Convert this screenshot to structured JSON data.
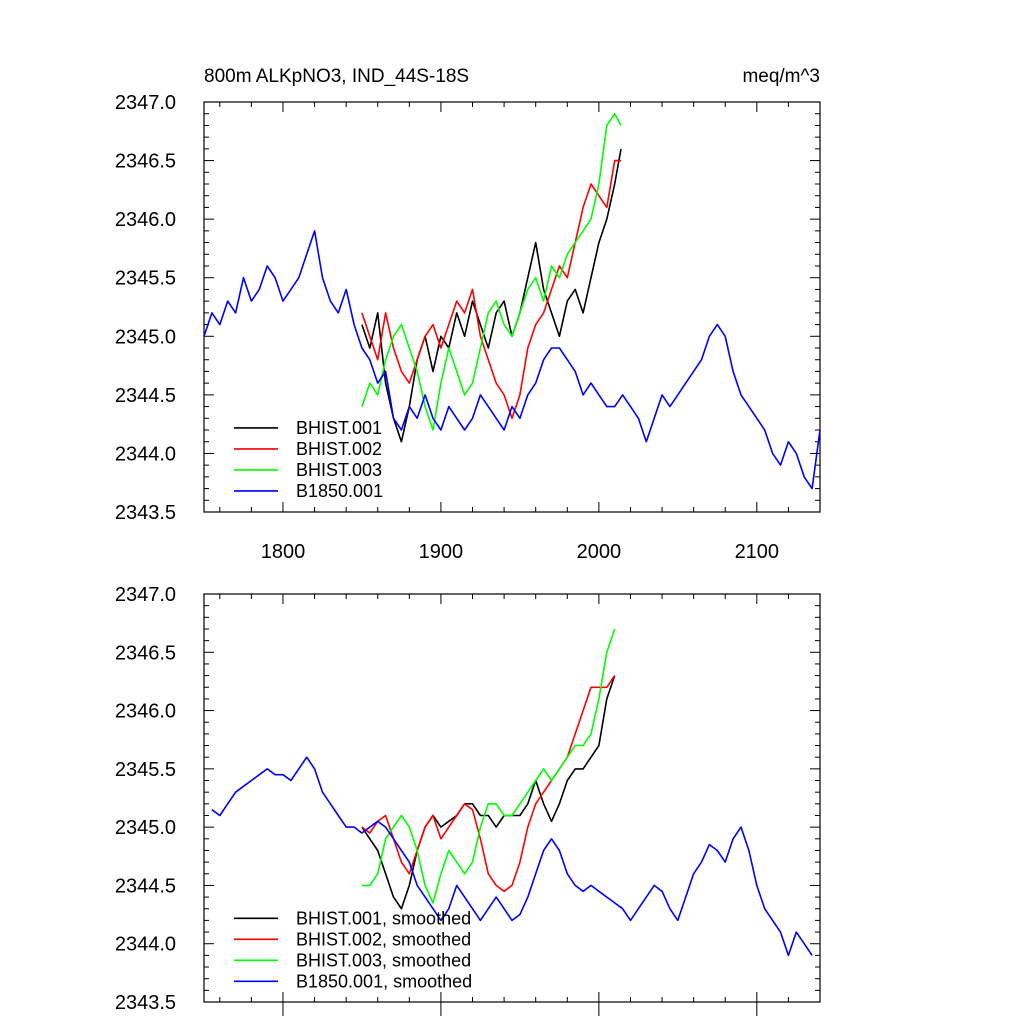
{
  "chart_data": [
    {
      "type": "line",
      "title": "800m ALKpNO3, IND_44S-18S",
      "units": "meq/m^3",
      "xlabel": "",
      "ylabel": "",
      "xlim": [
        1750,
        2140
      ],
      "ylim": [
        2343.5,
        2347.0
      ],
      "x_ticks": [
        1800,
        1900,
        2000,
        2100
      ],
      "x_tick_labels": [
        "1800",
        "1900",
        "2000",
        "2100"
      ],
      "y_ticks": [
        2343.5,
        2344.0,
        2344.5,
        2345.0,
        2345.5,
        2346.0,
        2346.5,
        2347.0
      ],
      "y_tick_labels": [
        "2343.5",
        "2344.0",
        "2344.5",
        "2345.0",
        "2345.5",
        "2346.0",
        "2346.5",
        "2347.0"
      ],
      "grid": false,
      "legend": "bottom-left",
      "series": [
        {
          "name": "BHIST.001",
          "color": "#000000",
          "x": [
            1850,
            1855,
            1860,
            1865,
            1870,
            1875,
            1880,
            1885,
            1890,
            1895,
            1900,
            1905,
            1910,
            1915,
            1920,
            1925,
            1930,
            1935,
            1940,
            1945,
            1950,
            1955,
            1960,
            1965,
            1970,
            1975,
            1980,
            1985,
            1990,
            1995,
            2000,
            2005,
            2010,
            2014
          ],
          "y": [
            2345.1,
            2344.9,
            2345.2,
            2344.6,
            2344.3,
            2344.1,
            2344.4,
            2344.8,
            2345.0,
            2344.7,
            2345.0,
            2344.9,
            2345.2,
            2345.0,
            2345.3,
            2345.1,
            2344.9,
            2345.2,
            2345.3,
            2345.0,
            2345.2,
            2345.5,
            2345.8,
            2345.4,
            2345.2,
            2345.0,
            2345.3,
            2345.4,
            2345.2,
            2345.5,
            2345.8,
            2346.0,
            2346.3,
            2346.6
          ]
        },
        {
          "name": "BHIST.002",
          "color": "#ff0000",
          "x": [
            1850,
            1855,
            1860,
            1865,
            1870,
            1875,
            1880,
            1885,
            1890,
            1895,
            1900,
            1905,
            1910,
            1915,
            1920,
            1925,
            1930,
            1935,
            1940,
            1945,
            1950,
            1955,
            1960,
            1965,
            1970,
            1975,
            1980,
            1985,
            1990,
            1995,
            2000,
            2005,
            2010,
            2014
          ],
          "y": [
            2345.2,
            2345.0,
            2344.8,
            2345.2,
            2344.9,
            2344.7,
            2344.6,
            2344.8,
            2345.0,
            2345.1,
            2344.9,
            2345.1,
            2345.3,
            2345.2,
            2345.4,
            2345.0,
            2344.8,
            2344.6,
            2344.5,
            2344.3,
            2344.5,
            2344.9,
            2345.1,
            2345.2,
            2345.4,
            2345.6,
            2345.5,
            2345.8,
            2346.1,
            2346.3,
            2346.2,
            2346.1,
            2346.5,
            2346.5
          ]
        },
        {
          "name": "BHIST.003",
          "color": "#00ff00",
          "x": [
            1850,
            1855,
            1860,
            1865,
            1870,
            1875,
            1880,
            1885,
            1890,
            1895,
            1900,
            1905,
            1910,
            1915,
            1920,
            1925,
            1930,
            1935,
            1940,
            1945,
            1950,
            1955,
            1960,
            1965,
            1970,
            1975,
            1980,
            1985,
            1990,
            1995,
            2000,
            2005,
            2010,
            2014
          ],
          "y": [
            2344.4,
            2344.6,
            2344.5,
            2344.8,
            2345.0,
            2345.1,
            2344.9,
            2344.7,
            2344.4,
            2344.2,
            2344.6,
            2344.9,
            2344.7,
            2344.5,
            2344.6,
            2344.9,
            2345.2,
            2345.3,
            2345.1,
            2345.0,
            2345.2,
            2345.4,
            2345.5,
            2345.3,
            2345.6,
            2345.5,
            2345.7,
            2345.8,
            2345.9,
            2346.0,
            2346.3,
            2346.8,
            2346.9,
            2346.8
          ]
        },
        {
          "name": "B1850.001",
          "color": "#0000ff",
          "x": [
            1750,
            1755,
            1760,
            1765,
            1770,
            1775,
            1780,
            1785,
            1790,
            1795,
            1800,
            1805,
            1810,
            1815,
            1820,
            1825,
            1830,
            1835,
            1840,
            1845,
            1850,
            1855,
            1860,
            1865,
            1870,
            1875,
            1880,
            1885,
            1890,
            1895,
            1900,
            1905,
            1910,
            1915,
            1920,
            1925,
            1930,
            1935,
            1940,
            1945,
            1950,
            1955,
            1960,
            1965,
            1970,
            1975,
            1980,
            1985,
            1990,
            1995,
            2000,
            2005,
            2010,
            2015,
            2020,
            2025,
            2030,
            2035,
            2040,
            2045,
            2050,
            2055,
            2060,
            2065,
            2070,
            2075,
            2080,
            2085,
            2090,
            2095,
            2100,
            2105,
            2110,
            2115,
            2120,
            2125,
            2130,
            2135,
            2140
          ],
          "y": [
            2345.0,
            2345.2,
            2345.1,
            2345.3,
            2345.2,
            2345.5,
            2345.3,
            2345.4,
            2345.6,
            2345.5,
            2345.3,
            2345.4,
            2345.5,
            2345.7,
            2345.9,
            2345.5,
            2345.3,
            2345.2,
            2345.4,
            2345.1,
            2344.9,
            2344.8,
            2344.6,
            2344.7,
            2344.3,
            2344.2,
            2344.4,
            2344.3,
            2344.5,
            2344.3,
            2344.2,
            2344.4,
            2344.3,
            2344.2,
            2344.3,
            2344.5,
            2344.4,
            2344.3,
            2344.2,
            2344.4,
            2344.3,
            2344.5,
            2344.6,
            2344.8,
            2344.9,
            2344.9,
            2344.8,
            2344.7,
            2344.5,
            2344.6,
            2344.5,
            2344.4,
            2344.4,
            2344.5,
            2344.4,
            2344.3,
            2344.1,
            2344.3,
            2344.5,
            2344.4,
            2344.5,
            2344.6,
            2344.7,
            2344.8,
            2345.0,
            2345.1,
            2345.0,
            2344.7,
            2344.5,
            2344.4,
            2344.3,
            2344.2,
            2344.0,
            2343.9,
            2344.1,
            2344.0,
            2343.8,
            2343.7,
            2344.2
          ]
        }
      ]
    },
    {
      "type": "line",
      "title": "",
      "xlabel": "",
      "ylabel": "",
      "xlim": [
        1750,
        2140
      ],
      "ylim": [
        2343.5,
        2347.0
      ],
      "x_ticks": [
        1800,
        1900,
        2000,
        2100
      ],
      "x_tick_labels": [],
      "y_ticks": [
        2343.5,
        2344.0,
        2344.5,
        2345.0,
        2345.5,
        2346.0,
        2346.5,
        2347.0
      ],
      "y_tick_labels": [
        "2343.5",
        "2344.0",
        "2344.5",
        "2345.0",
        "2345.5",
        "2346.0",
        "2346.5",
        "2347.0"
      ],
      "grid": false,
      "legend": "bottom-left",
      "series": [
        {
          "name": "BHIST.001, smoothed",
          "color": "#000000",
          "x": [
            1850,
            1855,
            1860,
            1865,
            1870,
            1875,
            1880,
            1885,
            1890,
            1895,
            1900,
            1905,
            1910,
            1915,
            1920,
            1925,
            1930,
            1935,
            1940,
            1945,
            1950,
            1955,
            1960,
            1965,
            1970,
            1975,
            1980,
            1985,
            1990,
            1995,
            2000,
            2005,
            2010
          ],
          "y": [
            2345.0,
            2344.9,
            2344.8,
            2344.6,
            2344.4,
            2344.3,
            2344.5,
            2344.8,
            2345.0,
            2345.1,
            2345.0,
            2345.05,
            2345.1,
            2345.2,
            2345.2,
            2345.1,
            2345.1,
            2345.0,
            2345.1,
            2345.1,
            2345.1,
            2345.2,
            2345.4,
            2345.2,
            2345.05,
            2345.2,
            2345.4,
            2345.5,
            2345.5,
            2345.6,
            2345.7,
            2346.1,
            2346.3
          ]
        },
        {
          "name": "BHIST.002, smoothed",
          "color": "#ff0000",
          "x": [
            1850,
            1855,
            1860,
            1865,
            1870,
            1875,
            1880,
            1885,
            1890,
            1895,
            1900,
            1905,
            1910,
            1915,
            1920,
            1925,
            1930,
            1935,
            1940,
            1945,
            1950,
            1955,
            1960,
            1965,
            1970,
            1975,
            1980,
            1985,
            1990,
            1995,
            2000,
            2005,
            2010
          ],
          "y": [
            2345.0,
            2344.95,
            2345.05,
            2345.1,
            2344.9,
            2344.7,
            2344.6,
            2344.8,
            2345.0,
            2345.1,
            2344.9,
            2345.0,
            2345.1,
            2345.2,
            2345.15,
            2344.9,
            2344.6,
            2344.5,
            2344.45,
            2344.5,
            2344.7,
            2345.0,
            2345.2,
            2345.3,
            2345.4,
            2345.5,
            2345.6,
            2345.8,
            2346.0,
            2346.2,
            2346.2,
            2346.2,
            2346.3
          ]
        },
        {
          "name": "BHIST.003, smoothed",
          "color": "#00ff00",
          "x": [
            1850,
            1855,
            1860,
            1865,
            1870,
            1875,
            1880,
            1885,
            1890,
            1895,
            1900,
            1905,
            1910,
            1915,
            1920,
            1925,
            1930,
            1935,
            1940,
            1945,
            1950,
            1955,
            1960,
            1965,
            1970,
            1975,
            1980,
            1985,
            1990,
            1995,
            2000,
            2005,
            2010
          ],
          "y": [
            2344.5,
            2344.5,
            2344.6,
            2344.9,
            2345.0,
            2345.1,
            2345.0,
            2344.8,
            2344.5,
            2344.35,
            2344.6,
            2344.8,
            2344.7,
            2344.6,
            2344.7,
            2345.0,
            2345.2,
            2345.2,
            2345.1,
            2345.1,
            2345.2,
            2345.3,
            2345.4,
            2345.5,
            2345.4,
            2345.5,
            2345.6,
            2345.7,
            2345.7,
            2345.8,
            2346.1,
            2346.5,
            2346.7
          ]
        },
        {
          "name": "B1850.001, smoothed",
          "color": "#0000ff",
          "x": [
            1755,
            1760,
            1765,
            1770,
            1775,
            1780,
            1785,
            1790,
            1795,
            1800,
            1805,
            1810,
            1815,
            1820,
            1825,
            1830,
            1835,
            1840,
            1845,
            1850,
            1855,
            1860,
            1865,
            1870,
            1875,
            1880,
            1885,
            1890,
            1895,
            1900,
            1905,
            1910,
            1915,
            1920,
            1925,
            1930,
            1935,
            1940,
            1945,
            1950,
            1955,
            1960,
            1965,
            1970,
            1975,
            1980,
            1985,
            1990,
            1995,
            2000,
            2005,
            2010,
            2015,
            2020,
            2025,
            2030,
            2035,
            2040,
            2045,
            2050,
            2055,
            2060,
            2065,
            2070,
            2075,
            2080,
            2085,
            2090,
            2095,
            2100,
            2105,
            2110,
            2115,
            2120,
            2125,
            2130,
            2135
          ],
          "y": [
            2345.15,
            2345.1,
            2345.2,
            2345.3,
            2345.35,
            2345.4,
            2345.45,
            2345.5,
            2345.45,
            2345.45,
            2345.4,
            2345.5,
            2345.6,
            2345.5,
            2345.3,
            2345.2,
            2345.1,
            2345.0,
            2345.0,
            2344.95,
            2345.0,
            2345.05,
            2345.0,
            2344.9,
            2344.8,
            2344.7,
            2344.5,
            2344.4,
            2344.3,
            2344.2,
            2344.3,
            2344.5,
            2344.4,
            2344.3,
            2344.2,
            2344.3,
            2344.4,
            2344.3,
            2344.2,
            2344.25,
            2344.4,
            2344.6,
            2344.8,
            2344.9,
            2344.8,
            2344.6,
            2344.5,
            2344.45,
            2344.5,
            2344.45,
            2344.4,
            2344.35,
            2344.3,
            2344.2,
            2344.3,
            2344.4,
            2344.5,
            2344.45,
            2344.3,
            2344.2,
            2344.4,
            2344.6,
            2344.7,
            2344.85,
            2344.8,
            2344.7,
            2344.9,
            2345.0,
            2344.8,
            2344.5,
            2344.3,
            2344.2,
            2344.1,
            2343.9,
            2344.1,
            2344.0,
            2343.9
          ]
        }
      ]
    }
  ]
}
